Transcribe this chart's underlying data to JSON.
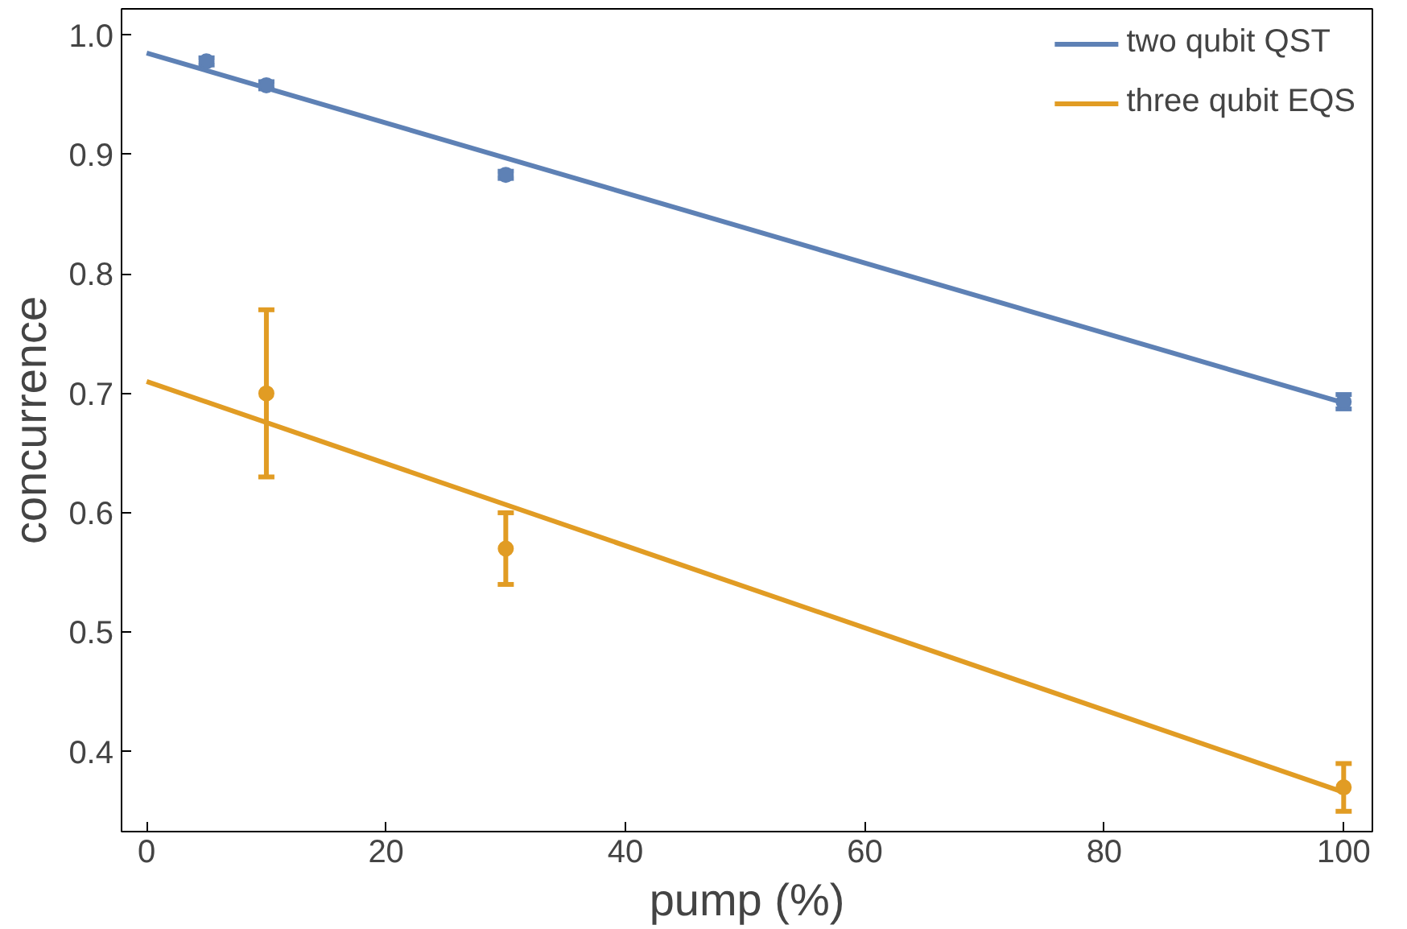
{
  "chart_data": {
    "type": "scatter",
    "xlabel": "pump (%)",
    "ylabel": "concurrence",
    "xlim": [
      -2.1,
      102.4
    ],
    "ylim": [
      0.333,
      1.022
    ],
    "xticks": [
      0,
      20,
      40,
      60,
      80,
      100
    ],
    "yticks": [
      0.4,
      0.5,
      0.6,
      0.7,
      0.8,
      0.9,
      {
        "value": 1.0,
        "label": "1.0"
      }
    ],
    "grid": false,
    "legend": "top right",
    "series": [
      {
        "name": "two qubit QST",
        "type": "line",
        "color": "#5e81b5",
        "x": [
          0,
          100
        ],
        "values": [
          0.985,
          0.692
        ]
      },
      {
        "name": "three qubit EQS",
        "type": "line",
        "color": "#e19c24",
        "x": [
          0,
          100
        ],
        "values": [
          0.71,
          0.366
        ]
      },
      {
        "marker": "circle",
        "color": "#5e81b5",
        "x": [
          5,
          10,
          30,
          100
        ],
        "values": [
          0.978,
          0.958,
          0.883,
          0.693
        ],
        "errors": [
          0.003,
          0.003,
          0.003,
          0.006
        ]
      },
      {
        "marker": "circle",
        "color": "#e19c24",
        "x": [
          10,
          30,
          100
        ],
        "values": [
          0.7,
          0.57,
          0.37
        ],
        "errors": [
          0.07,
          0.03,
          0.02
        ]
      }
    ]
  }
}
